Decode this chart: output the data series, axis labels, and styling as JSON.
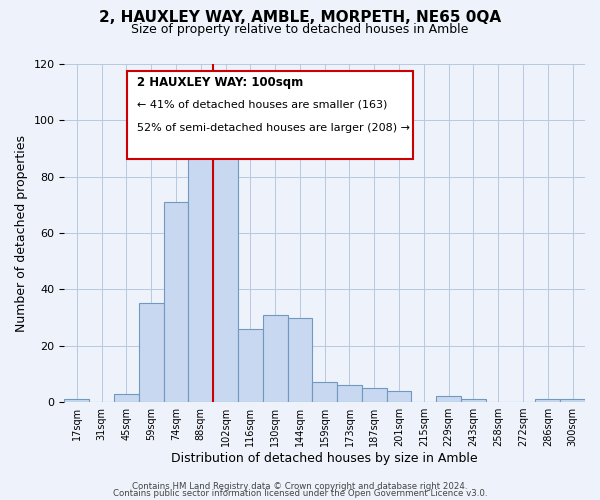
{
  "title": "2, HAUXLEY WAY, AMBLE, MORPETH, NE65 0QA",
  "subtitle": "Size of property relative to detached houses in Amble",
  "xlabel": "Distribution of detached houses by size in Amble",
  "ylabel": "Number of detached properties",
  "bin_labels": [
    "17sqm",
    "31sqm",
    "45sqm",
    "59sqm",
    "74sqm",
    "88sqm",
    "102sqm",
    "116sqm",
    "130sqm",
    "144sqm",
    "159sqm",
    "173sqm",
    "187sqm",
    "201sqm",
    "215sqm",
    "229sqm",
    "243sqm",
    "258sqm",
    "272sqm",
    "286sqm",
    "300sqm"
  ],
  "bar_values": [
    1,
    0,
    3,
    35,
    71,
    91,
    93,
    26,
    31,
    30,
    7,
    6,
    5,
    4,
    0,
    2,
    1,
    0,
    0,
    1,
    1
  ],
  "bar_color": "#c8d8f0",
  "bar_edge_color": "#7098c0",
  "vline_x": 6.0,
  "vline_color": "#cc0000",
  "annotation_title": "2 HAUXLEY WAY: 100sqm",
  "annotation_line1": "← 41% of detached houses are smaller (163)",
  "annotation_line2": "52% of semi-detached houses are larger (208) →",
  "annotation_box_color": "#ffffff",
  "annotation_box_edge_color": "#cc0000",
  "ylim": [
    0,
    120
  ],
  "yticks": [
    0,
    20,
    40,
    60,
    80,
    100,
    120
  ],
  "footer1": "Contains HM Land Registry data © Crown copyright and database right 2024.",
  "footer2": "Contains public sector information licensed under the Open Government Licence v3.0.",
  "bg_color": "#eef2fa"
}
